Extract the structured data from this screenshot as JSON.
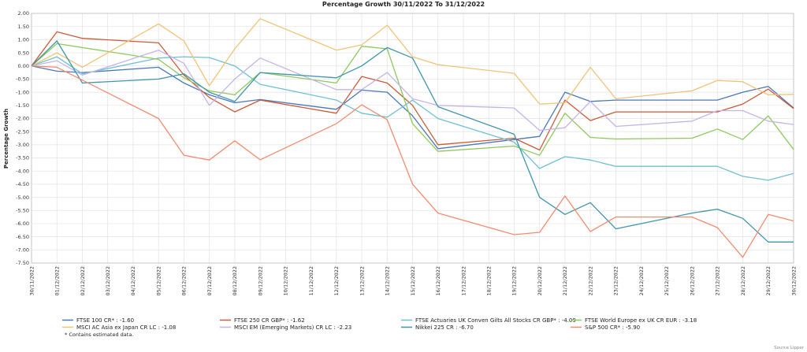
{
  "chart_data": {
    "type": "line",
    "title": "Percentage Growth 30/11/2022 To 31/12/2022",
    "ylabel": "Percentage Growth",
    "xlabel": "",
    "ylim": [
      -7.5,
      2.0
    ],
    "yticks": [
      2.0,
      1.5,
      1.0,
      0.5,
      0.0,
      -0.5,
      -1.0,
      -1.5,
      -2.0,
      -2.5,
      -3.0,
      -3.5,
      -4.0,
      -4.5,
      -5.0,
      -5.5,
      -6.0,
      -6.5,
      -7.0,
      -7.5
    ],
    "ytick_labels": [
      "2.00",
      "1.50",
      "1.00",
      "0.50",
      "0.00",
      "-0.50",
      "-1.00",
      "-1.50",
      "-2.00",
      "-2.50",
      "-3.00",
      "-3.50",
      "-4.00",
      "-4.50",
      "-5.00",
      "-5.50",
      "-6.00",
      "-6.50",
      "-7.00",
      "-7.50"
    ],
    "grid": true,
    "legend_position": "bottom",
    "x": [
      "30/11/2022",
      "01/12/2022",
      "02/12/2022",
      "03/12/2022",
      "04/12/2022",
      "05/12/2022",
      "06/12/2022",
      "07/12/2022",
      "08/12/2022",
      "09/12/2022",
      "10/12/2022",
      "11/12/2022",
      "12/12/2022",
      "13/12/2022",
      "14/12/2022",
      "15/12/2022",
      "16/12/2022",
      "17/12/2022",
      "18/12/2022",
      "19/12/2022",
      "20/12/2022",
      "21/12/2022",
      "22/12/2022",
      "23/12/2022",
      "24/12/2022",
      "25/12/2022",
      "26/12/2022",
      "27/12/2022",
      "28/12/2022",
      "29/12/2022",
      "30/12/2022"
    ],
    "series": [
      {
        "name": "FTSE 100 CR* : -1.60",
        "color": "#4a78b8",
        "points": [
          [
            0,
            0.0
          ],
          [
            1,
            -0.2
          ],
          [
            2,
            -0.25
          ],
          [
            5,
            -0.05
          ],
          [
            6,
            -0.65
          ],
          [
            7,
            -1.1
          ],
          [
            8,
            -1.4
          ],
          [
            9,
            -1.28
          ],
          [
            12,
            -1.65
          ],
          [
            13,
            -0.92
          ],
          [
            14,
            -1.0
          ],
          [
            15,
            -1.9
          ],
          [
            16,
            -3.15
          ],
          [
            19,
            -2.8
          ],
          [
            20,
            -2.68
          ],
          [
            21,
            -1.0
          ],
          [
            22,
            -1.35
          ],
          [
            23,
            -1.3
          ],
          [
            27,
            -1.3
          ],
          [
            28,
            -1.0
          ],
          [
            29,
            -0.78
          ],
          [
            30,
            -1.6
          ]
        ]
      },
      {
        "name": "FTSE 250 CR GBP* : -1.62",
        "color": "#cc5a36",
        "points": [
          [
            0,
            0.0
          ],
          [
            1,
            1.3
          ],
          [
            2,
            1.05
          ],
          [
            5,
            0.88
          ],
          [
            6,
            -0.35
          ],
          [
            7,
            -1.2
          ],
          [
            8,
            -1.75
          ],
          [
            9,
            -1.3
          ],
          [
            12,
            -1.8
          ],
          [
            13,
            -0.4
          ],
          [
            14,
            -0.65
          ],
          [
            15,
            -1.5
          ],
          [
            16,
            -3.0
          ],
          [
            19,
            -2.75
          ],
          [
            20,
            -3.2
          ],
          [
            21,
            -1.3
          ],
          [
            22,
            -2.08
          ],
          [
            23,
            -1.75
          ],
          [
            27,
            -1.75
          ],
          [
            28,
            -1.45
          ],
          [
            29,
            -0.88
          ],
          [
            30,
            -1.62
          ]
        ]
      },
      {
        "name": "FTSE Actuaries UK Conven Gilts All Stocks CR GBP* : -4.09",
        "color": "#6ec0d3",
        "points": [
          [
            0,
            0.0
          ],
          [
            1,
            0.35
          ],
          [
            2,
            -0.3
          ],
          [
            5,
            0.3
          ],
          [
            6,
            0.35
          ],
          [
            7,
            0.32
          ],
          [
            8,
            0.0
          ],
          [
            9,
            -0.7
          ],
          [
            12,
            -1.3
          ],
          [
            13,
            -1.8
          ],
          [
            14,
            -1.95
          ],
          [
            15,
            -1.3
          ],
          [
            16,
            -2.0
          ],
          [
            19,
            -2.9
          ],
          [
            20,
            -3.9
          ],
          [
            21,
            -3.45
          ],
          [
            22,
            -3.58
          ],
          [
            23,
            -3.82
          ],
          [
            27,
            -3.82
          ],
          [
            28,
            -4.2
          ],
          [
            29,
            -4.35
          ],
          [
            30,
            -4.09
          ]
        ]
      },
      {
        "name": "FTSE World Europe ex UK CR EUR : -3.18",
        "color": "#8fc85a",
        "points": [
          [
            0,
            0.0
          ],
          [
            1,
            0.85
          ],
          [
            5,
            0.25
          ],
          [
            6,
            -0.45
          ],
          [
            7,
            -0.95
          ],
          [
            8,
            -1.1
          ],
          [
            9,
            -0.25
          ],
          [
            12,
            -0.65
          ],
          [
            13,
            0.75
          ],
          [
            14,
            0.65
          ],
          [
            15,
            -2.2
          ],
          [
            16,
            -3.25
          ],
          [
            19,
            -3.05
          ],
          [
            20,
            -3.4
          ],
          [
            21,
            -1.8
          ],
          [
            22,
            -2.72
          ],
          [
            23,
            -2.78
          ],
          [
            26,
            -2.75
          ],
          [
            27,
            -2.4
          ],
          [
            28,
            -2.8
          ],
          [
            29,
            -1.9
          ],
          [
            30,
            -3.18
          ]
        ]
      },
      {
        "name": "MSCI AC Asia ex Japan CR LC : -1.08",
        "color": "#f0c274",
        "points": [
          [
            0,
            0.0
          ],
          [
            1,
            0.5
          ],
          [
            2,
            -0.05
          ],
          [
            5,
            1.6
          ],
          [
            6,
            0.95
          ],
          [
            7,
            -0.75
          ],
          [
            8,
            0.65
          ],
          [
            9,
            1.8
          ],
          [
            12,
            0.6
          ],
          [
            13,
            0.8
          ],
          [
            14,
            1.55
          ],
          [
            15,
            0.35
          ],
          [
            16,
            0.05
          ],
          [
            19,
            -0.28
          ],
          [
            20,
            -1.45
          ],
          [
            21,
            -1.4
          ],
          [
            22,
            -0.05
          ],
          [
            23,
            -1.25
          ],
          [
            26,
            -0.95
          ],
          [
            27,
            -0.55
          ],
          [
            28,
            -0.6
          ],
          [
            29,
            -1.1
          ],
          [
            30,
            -1.08
          ]
        ]
      },
      {
        "name": "MSCI EM (Emerging Markets) CR LC : -2.23",
        "color": "#c4b4e6",
        "points": [
          [
            0,
            0.0
          ],
          [
            1,
            0.2
          ],
          [
            2,
            -0.35
          ],
          [
            5,
            0.6
          ],
          [
            6,
            0.1
          ],
          [
            7,
            -1.5
          ],
          [
            8,
            -0.5
          ],
          [
            9,
            0.3
          ],
          [
            12,
            -0.9
          ],
          [
            13,
            -0.9
          ],
          [
            14,
            -0.25
          ],
          [
            15,
            -1.25
          ],
          [
            16,
            -1.5
          ],
          [
            19,
            -1.6
          ],
          [
            20,
            -2.45
          ],
          [
            21,
            -2.35
          ],
          [
            22,
            -1.35
          ],
          [
            23,
            -2.3
          ],
          [
            26,
            -2.1
          ],
          [
            27,
            -1.7
          ],
          [
            28,
            -1.7
          ],
          [
            29,
            -2.1
          ],
          [
            30,
            -2.23
          ]
        ]
      },
      {
        "name": "Nikkei 225 CR : -6.70",
        "color": "#3d96aa",
        "points": [
          [
            0,
            0.0
          ],
          [
            1,
            0.95
          ],
          [
            2,
            -0.65
          ],
          [
            5,
            -0.5
          ],
          [
            6,
            -0.3
          ],
          [
            7,
            -1.0
          ],
          [
            8,
            -1.35
          ],
          [
            9,
            -0.25
          ],
          [
            12,
            -0.45
          ],
          [
            13,
            0.0
          ],
          [
            14,
            0.7
          ],
          [
            15,
            0.3
          ],
          [
            16,
            -1.55
          ],
          [
            19,
            -2.6
          ],
          [
            20,
            -5.0
          ],
          [
            21,
            -5.65
          ],
          [
            22,
            -5.2
          ],
          [
            23,
            -6.2
          ],
          [
            26,
            -5.6
          ],
          [
            27,
            -5.45
          ],
          [
            28,
            -5.8
          ],
          [
            29,
            -6.7
          ],
          [
            30,
            -6.7
          ]
        ]
      },
      {
        "name": "S&P 500 CR* : -5.90",
        "color": "#f28b6e",
        "points": [
          [
            0,
            0.0
          ],
          [
            1,
            -0.05
          ],
          [
            5,
            -2.0
          ],
          [
            6,
            -3.4
          ],
          [
            7,
            -3.58
          ],
          [
            8,
            -2.85
          ],
          [
            9,
            -3.57
          ],
          [
            12,
            -2.2
          ],
          [
            13,
            -1.48
          ],
          [
            14,
            -2.05
          ],
          [
            15,
            -4.5
          ],
          [
            16,
            -5.6
          ],
          [
            19,
            -6.42
          ],
          [
            20,
            -6.33
          ],
          [
            21,
            -4.95
          ],
          [
            22,
            -6.3
          ],
          [
            23,
            -5.75
          ],
          [
            26,
            -5.75
          ],
          [
            27,
            -6.15
          ],
          [
            28,
            -7.28
          ],
          [
            29,
            -5.65
          ],
          [
            30,
            -5.9
          ]
        ]
      }
    ],
    "note": "*  Contains estimated data.",
    "source": "Source Lipper"
  }
}
